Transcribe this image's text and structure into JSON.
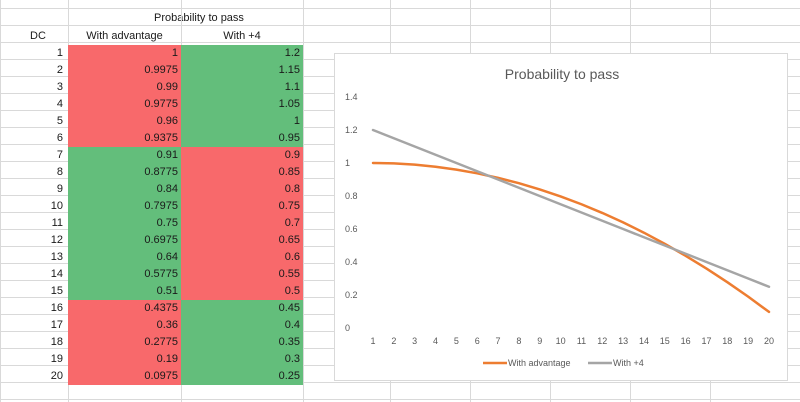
{
  "table": {
    "group_header": "Probability to pass",
    "col_dc": "DC",
    "col_adv": "With advantage",
    "col_plus4": "With +4",
    "colors": {
      "red": "#f8696b",
      "green": "#63be7b"
    },
    "rows": [
      {
        "dc": "1",
        "adv": "1",
        "plus4": "1.2",
        "adv_fill": "red",
        "plus4_fill": "green"
      },
      {
        "dc": "2",
        "adv": "0.9975",
        "plus4": "1.15",
        "adv_fill": "red",
        "plus4_fill": "green"
      },
      {
        "dc": "3",
        "adv": "0.99",
        "plus4": "1.1",
        "adv_fill": "red",
        "plus4_fill": "green"
      },
      {
        "dc": "4",
        "adv": "0.9775",
        "plus4": "1.05",
        "adv_fill": "red",
        "plus4_fill": "green"
      },
      {
        "dc": "5",
        "adv": "0.96",
        "plus4": "1",
        "adv_fill": "red",
        "plus4_fill": "green"
      },
      {
        "dc": "6",
        "adv": "0.9375",
        "plus4": "0.95",
        "adv_fill": "red",
        "plus4_fill": "green"
      },
      {
        "dc": "7",
        "adv": "0.91",
        "plus4": "0.9",
        "adv_fill": "green",
        "plus4_fill": "red"
      },
      {
        "dc": "8",
        "adv": "0.8775",
        "plus4": "0.85",
        "adv_fill": "green",
        "plus4_fill": "red"
      },
      {
        "dc": "9",
        "adv": "0.84",
        "plus4": "0.8",
        "adv_fill": "green",
        "plus4_fill": "red"
      },
      {
        "dc": "10",
        "adv": "0.7975",
        "plus4": "0.75",
        "adv_fill": "green",
        "plus4_fill": "red"
      },
      {
        "dc": "11",
        "adv": "0.75",
        "plus4": "0.7",
        "adv_fill": "green",
        "plus4_fill": "red"
      },
      {
        "dc": "12",
        "adv": "0.6975",
        "plus4": "0.65",
        "adv_fill": "green",
        "plus4_fill": "red"
      },
      {
        "dc": "13",
        "adv": "0.64",
        "plus4": "0.6",
        "adv_fill": "green",
        "plus4_fill": "red"
      },
      {
        "dc": "14",
        "adv": "0.5775",
        "plus4": "0.55",
        "adv_fill": "green",
        "plus4_fill": "red"
      },
      {
        "dc": "15",
        "adv": "0.51",
        "plus4": "0.5",
        "adv_fill": "green",
        "plus4_fill": "red"
      },
      {
        "dc": "16",
        "adv": "0.4375",
        "plus4": "0.45",
        "adv_fill": "red",
        "plus4_fill": "green"
      },
      {
        "dc": "17",
        "adv": "0.36",
        "plus4": "0.4",
        "adv_fill": "red",
        "plus4_fill": "green"
      },
      {
        "dc": "18",
        "adv": "0.2775",
        "plus4": "0.35",
        "adv_fill": "red",
        "plus4_fill": "green"
      },
      {
        "dc": "19",
        "adv": "0.19",
        "plus4": "0.3",
        "adv_fill": "red",
        "plus4_fill": "green"
      },
      {
        "dc": "20",
        "adv": "0.0975",
        "plus4": "0.25",
        "adv_fill": "red",
        "plus4_fill": "green"
      }
    ]
  },
  "chart_data": {
    "type": "line",
    "title": "Probability to pass",
    "x": [
      1,
      2,
      3,
      4,
      5,
      6,
      7,
      8,
      9,
      10,
      11,
      12,
      13,
      14,
      15,
      16,
      17,
      18,
      19,
      20
    ],
    "xticks": [
      "1",
      "2",
      "3",
      "4",
      "5",
      "6",
      "7",
      "8",
      "9",
      "10",
      "11",
      "12",
      "13",
      "14",
      "15",
      "16",
      "17",
      "18",
      "19",
      "20"
    ],
    "yticks": [
      "1.4",
      "1.2",
      "1",
      "0.8",
      "0.6",
      "0.4",
      "0.2",
      "0"
    ],
    "ylim": [
      0,
      1.4
    ],
    "xlabel": "",
    "ylabel": "",
    "grid": false,
    "legend": "bottom",
    "series": [
      {
        "name": "With advantage",
        "color": "#ed7d31",
        "values": [
          1,
          0.9975,
          0.99,
          0.9775,
          0.96,
          0.9375,
          0.91,
          0.8775,
          0.84,
          0.7975,
          0.75,
          0.6975,
          0.64,
          0.5775,
          0.51,
          0.4375,
          0.36,
          0.2775,
          0.19,
          0.0975
        ]
      },
      {
        "name": "With +4",
        "color": "#a5a5a5",
        "values": [
          1.2,
          1.15,
          1.1,
          1.05,
          1,
          0.95,
          0.9,
          0.85,
          0.8,
          0.75,
          0.7,
          0.65,
          0.6,
          0.55,
          0.5,
          0.45,
          0.4,
          0.35,
          0.3,
          0.25
        ]
      }
    ]
  }
}
